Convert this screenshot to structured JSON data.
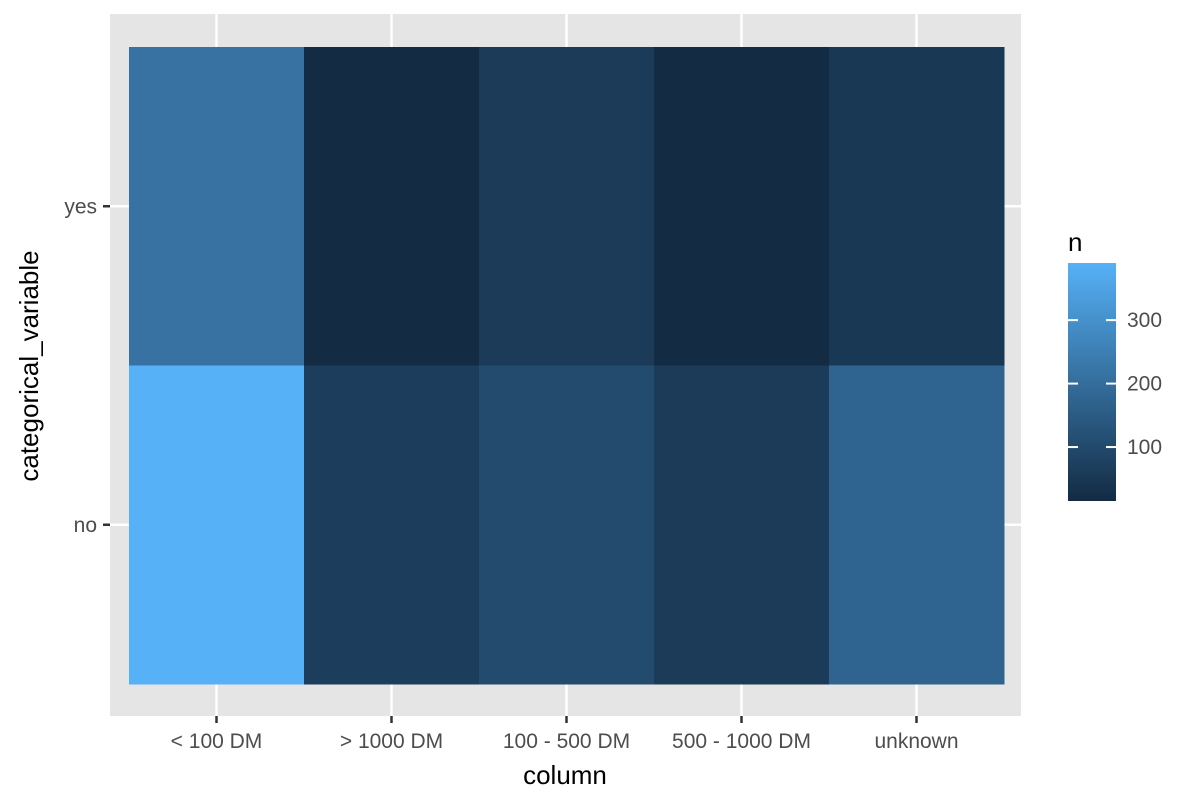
{
  "chart_data": {
    "type": "heatmap",
    "xlabel": "column",
    "ylabel": "categorical_variable",
    "x_categories": [
      "< 100 DM",
      "> 1000 DM",
      "100 - 500 DM",
      "500 - 1000 DM",
      "unknown"
    ],
    "y_categories": [
      "no",
      "yes"
    ],
    "values": [
      {
        "x": "< 100 DM",
        "y": "yes",
        "n": 215
      },
      {
        "x": "> 1000 DM",
        "y": "yes",
        "n": 15
      },
      {
        "x": "100 - 500 DM",
        "y": "yes",
        "n": 60
      },
      {
        "x": "500 - 1000 DM",
        "y": "yes",
        "n": 15
      },
      {
        "x": "unknown",
        "y": "yes",
        "n": 50
      },
      {
        "x": "< 100 DM",
        "y": "no",
        "n": 390
      },
      {
        "x": "> 1000 DM",
        "y": "no",
        "n": 65
      },
      {
        "x": "100 - 500 DM",
        "y": "no",
        "n": 105
      },
      {
        "x": "500 - 1000 DM",
        "y": "no",
        "n": 60
      },
      {
        "x": "unknown",
        "y": "no",
        "n": 175
      }
    ],
    "legend": {
      "title": "n",
      "placement": "right",
      "ticks": [
        100,
        200,
        300
      ],
      "tick_labels": [
        "100",
        "200",
        "300"
      ],
      "min": 15,
      "max": 390
    },
    "colors": {
      "low": "#132B43",
      "high": "#56B1F7",
      "panel_background": "#e5e5e5",
      "grid": "#ffffff"
    },
    "grid": true
  }
}
